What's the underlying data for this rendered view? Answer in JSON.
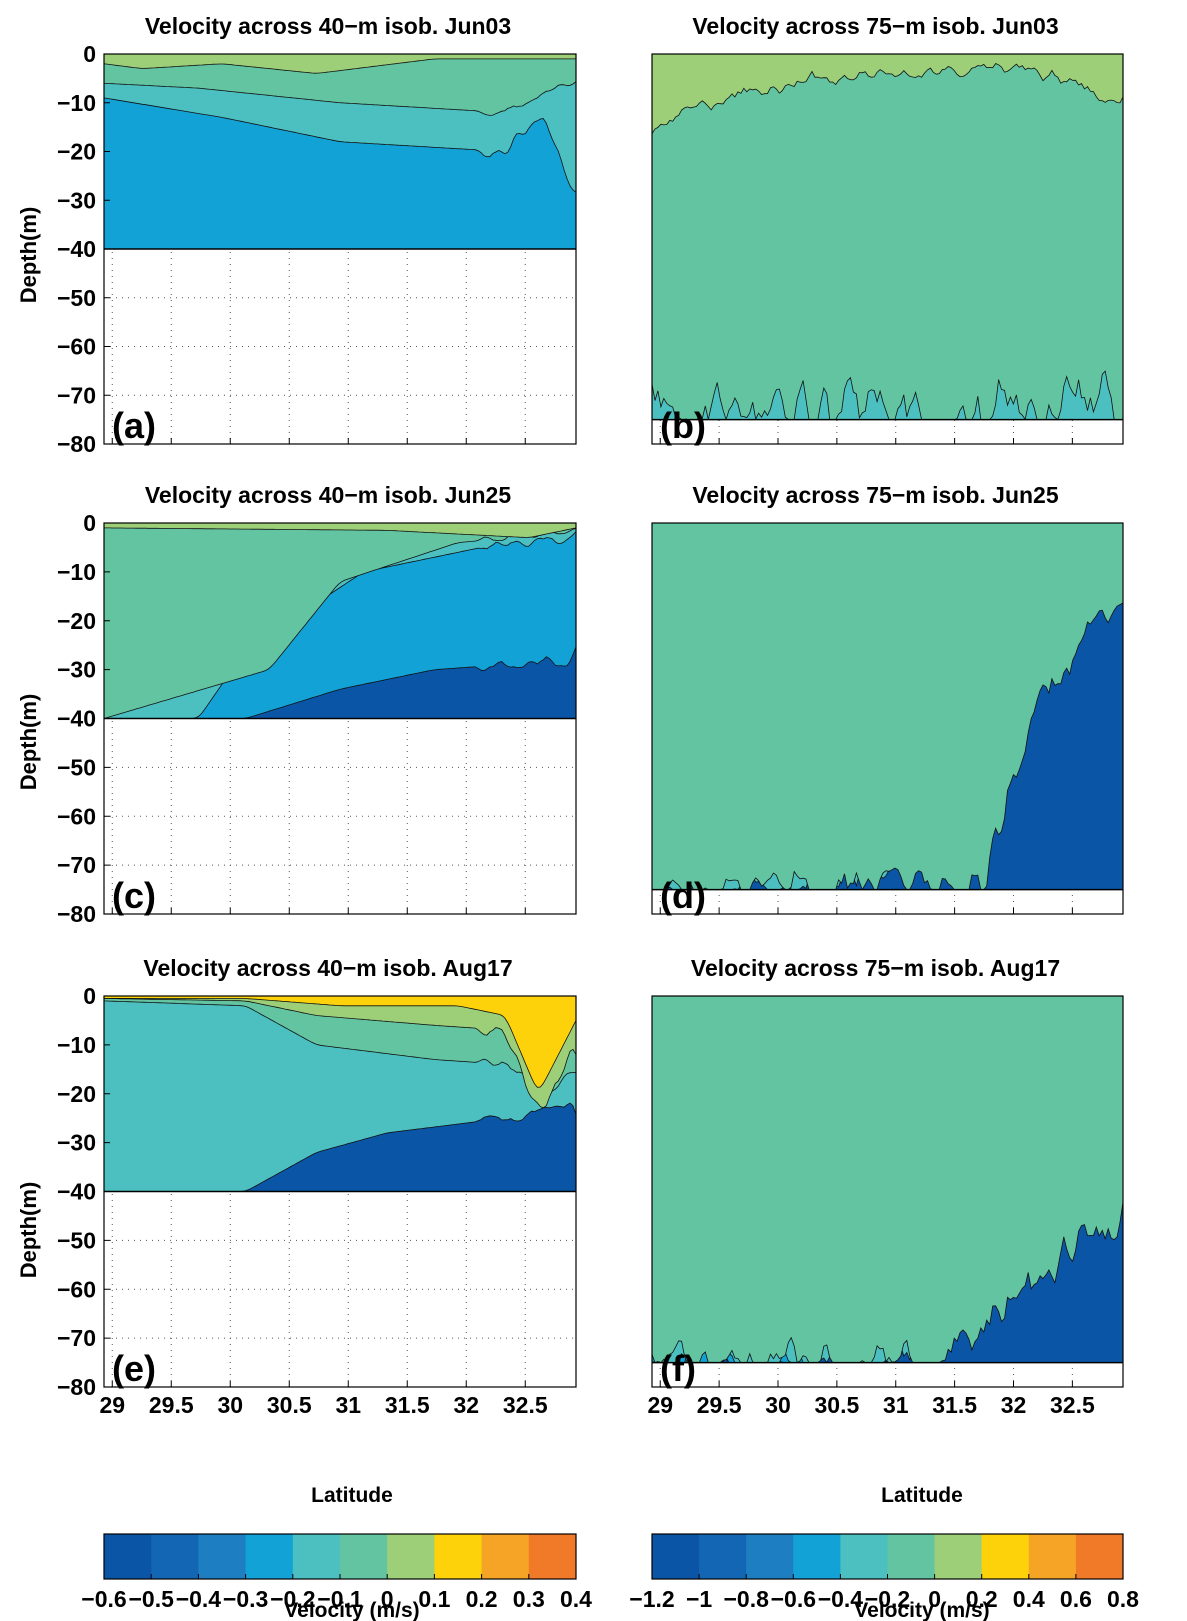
{
  "figure": {
    "ylabel": "Depth(m)",
    "xlabel": "Latitude",
    "colorbars": [
      {
        "label": "Velocity (m/s)",
        "levels": [
          -0.6,
          -0.5,
          -0.4,
          -0.3,
          -0.2,
          -0.1,
          0,
          0.1,
          0.2,
          0.3,
          0.4
        ],
        "ticklabels": [
          "−0.6",
          "−0.5",
          "−0.4",
          "−0.3",
          "−0.2",
          "−0.1",
          "0",
          "0.1",
          "0.2",
          "0.3",
          "0.4"
        ]
      },
      {
        "label": "Velocity (m/s)",
        "levels": [
          -1.2,
          -1.0,
          -0.8,
          -0.6,
          -0.4,
          -0.2,
          0,
          0.2,
          0.4,
          0.6,
          0.8
        ],
        "ticklabels": [
          "−1.2",
          "−1",
          "−0.8",
          "−0.6",
          "−0.4",
          "−0.2",
          "0",
          "0.2",
          "0.4",
          "0.6",
          "0.8"
        ]
      }
    ],
    "colormap": [
      "#0a55a6",
      "#1366b4",
      "#1d7fc2",
      "#12a2d6",
      "#4cbfc0",
      "#62c4a0",
      "#9dcf78",
      "#fdd20a",
      "#f6a426",
      "#f07a28"
    ]
  },
  "chart_data": [
    {
      "type": "heatmap",
      "panel_label": "(a)",
      "title": "Velocity across 40−m isob. Jun03",
      "xlim": [
        28.93,
        32.93
      ],
      "ylim": [
        -80,
        0
      ],
      "bottom_depth": -40,
      "colorbar": 0,
      "yticks": [
        0,
        -10,
        -20,
        -30,
        -40,
        -50,
        -60,
        -70,
        -80
      ],
      "yticklabels": [
        "0",
        "−10",
        "−20",
        "−30",
        "−40",
        "−50",
        "−60",
        "−70",
        "−80"
      ],
      "xticks": [
        29,
        29.5,
        30,
        30.5,
        31,
        31.5,
        32,
        32.5
      ],
      "xticklabels": []
    },
    {
      "type": "heatmap",
      "panel_label": "(b)",
      "title": "Velocity across 75−m isob. Jun03",
      "xlim": [
        28.93,
        32.93
      ],
      "ylim": [
        -80,
        0
      ],
      "bottom_depth": -75,
      "colorbar": 1,
      "xticks": [
        29,
        29.5,
        30,
        30.5,
        31,
        31.5,
        32,
        32.5
      ],
      "xticklabels": []
    },
    {
      "type": "heatmap",
      "panel_label": "(c)",
      "title": "Velocity across 40−m isob. Jun25",
      "xlim": [
        28.93,
        32.93
      ],
      "ylim": [
        -80,
        0
      ],
      "bottom_depth": -40,
      "colorbar": 0,
      "yticks": [
        0,
        -10,
        -20,
        -30,
        -40,
        -50,
        -60,
        -70,
        -80
      ],
      "yticklabels": [
        "0",
        "−10",
        "−20",
        "−30",
        "−40",
        "−50",
        "−60",
        "−70",
        "−80"
      ],
      "xticks": [
        29,
        29.5,
        30,
        30.5,
        31,
        31.5,
        32,
        32.5
      ],
      "xticklabels": []
    },
    {
      "type": "heatmap",
      "panel_label": "(d)",
      "title": "Velocity across 75−m isob. Jun25",
      "xlim": [
        28.93,
        32.93
      ],
      "ylim": [
        -80,
        0
      ],
      "bottom_depth": -75,
      "colorbar": 1,
      "xticks": [
        29,
        29.5,
        30,
        30.5,
        31,
        31.5,
        32,
        32.5
      ],
      "xticklabels": []
    },
    {
      "type": "heatmap",
      "panel_label": "(e)",
      "title": "Velocity across 40−m isob. Aug17",
      "xlim": [
        28.93,
        32.93
      ],
      "ylim": [
        -80,
        0
      ],
      "bottom_depth": -40,
      "colorbar": 0,
      "yticks": [
        0,
        -10,
        -20,
        -30,
        -40,
        -50,
        -60,
        -70,
        -80
      ],
      "yticklabels": [
        "0",
        "−10",
        "−20",
        "−30",
        "−40",
        "−50",
        "−60",
        "−70",
        "−80"
      ],
      "xticks": [
        29,
        29.5,
        30,
        30.5,
        31,
        31.5,
        32,
        32.5
      ],
      "xticklabels": [
        "29",
        "29.5",
        "30",
        "30.5",
        "31",
        "31.5",
        "32",
        "32.5"
      ]
    },
    {
      "type": "heatmap",
      "panel_label": "(f)",
      "title": "Velocity across 75−m isob. Aug17",
      "xlim": [
        28.93,
        32.93
      ],
      "ylim": [
        -80,
        0
      ],
      "bottom_depth": -75,
      "colorbar": 1,
      "xticks": [
        29,
        29.5,
        30,
        30.5,
        31,
        31.5,
        32,
        32.5
      ],
      "xticklabels": [
        "29",
        "29.5",
        "30",
        "30.5",
        "31",
        "31.5",
        "32",
        "32.5"
      ]
    }
  ]
}
